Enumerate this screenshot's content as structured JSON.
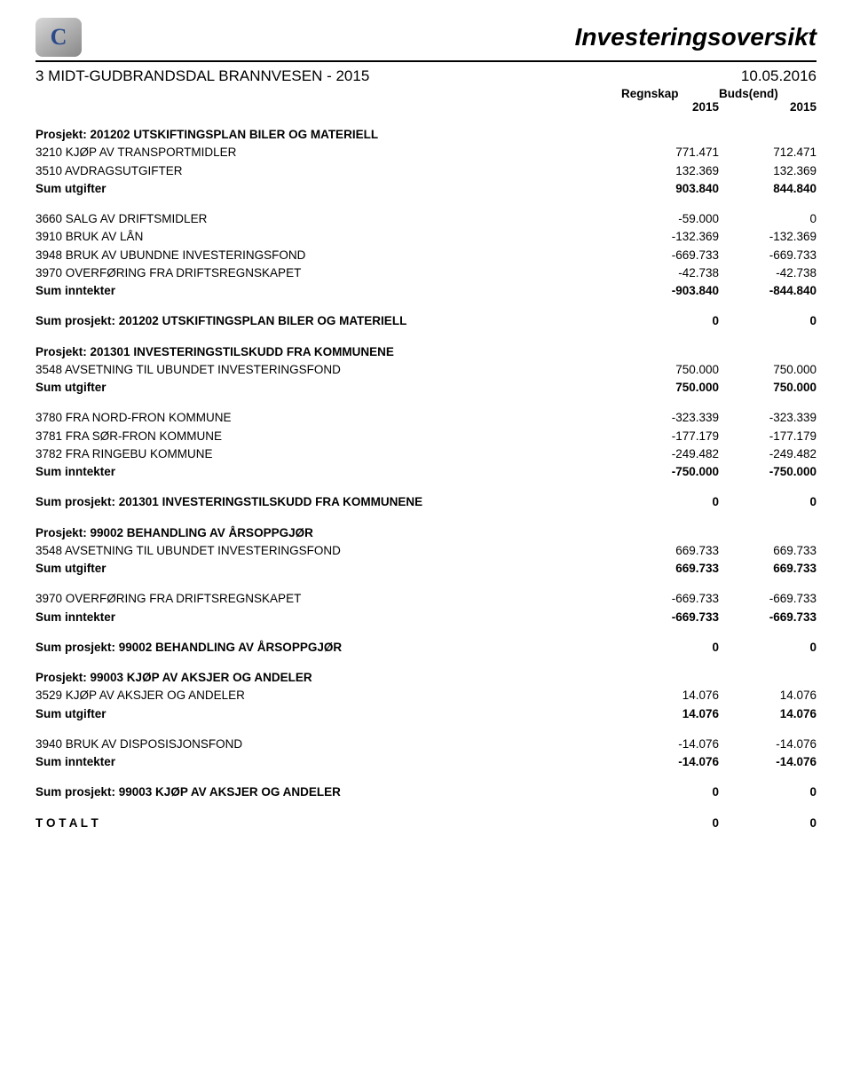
{
  "header": {
    "title": "Investeringsoversikt"
  },
  "subheader": {
    "left": "3 MIDT-GUDBRANDSDAL BRANNVESEN - 2015",
    "right": "10.05.2016",
    "col1top": "Regnskap",
    "col1bot": "2015",
    "col2top": "Buds(end)",
    "col2bot": "2015"
  },
  "body": [
    {
      "type": "prj",
      "label": "Prosjekt: 201202 UTSKIFTINGSPLAN BILER OG MATERIELL"
    },
    {
      "type": "line",
      "label": "3210 KJØP AV TRANSPORTMIDLER",
      "v1": "771.471",
      "v2": "712.471"
    },
    {
      "type": "line",
      "label": "3510 AVDRAGSUTGIFTER",
      "v1": "132.369",
      "v2": "132.369"
    },
    {
      "type": "sum",
      "label": "Sum utgifter",
      "v1": "903.840",
      "v2": "844.840"
    },
    {
      "type": "gap"
    },
    {
      "type": "line",
      "label": "3660 SALG AV DRIFTSMIDLER",
      "v1": "-59.000",
      "v2": "0"
    },
    {
      "type": "line",
      "label": "3910 BRUK AV LÅN",
      "v1": "-132.369",
      "v2": "-132.369"
    },
    {
      "type": "line",
      "label": "3948 BRUK AV UBUNDNE INVESTERINGSFOND",
      "v1": "-669.733",
      "v2": "-669.733"
    },
    {
      "type": "line",
      "label": "3970 OVERFØRING FRA DRIFTSREGNSKAPET",
      "v1": "-42.738",
      "v2": "-42.738"
    },
    {
      "type": "sum",
      "label": "Sum inntekter",
      "v1": "-903.840",
      "v2": "-844.840"
    },
    {
      "type": "gap"
    },
    {
      "type": "sum",
      "label": "Sum prosjekt: 201202 UTSKIFTINGSPLAN BILER OG MATERIELL",
      "v1": "0",
      "v2": "0"
    },
    {
      "type": "prj",
      "label": "Prosjekt: 201301 INVESTERINGSTILSKUDD FRA KOMMUNENE"
    },
    {
      "type": "line",
      "label": "3548 AVSETNING TIL UBUNDET INVESTERINGSFOND",
      "v1": "750.000",
      "v2": "750.000"
    },
    {
      "type": "sum",
      "label": "Sum utgifter",
      "v1": "750.000",
      "v2": "750.000"
    },
    {
      "type": "gap"
    },
    {
      "type": "line",
      "label": "3780 FRA NORD-FRON KOMMUNE",
      "v1": "-323.339",
      "v2": "-323.339"
    },
    {
      "type": "line",
      "label": "3781 FRA SØR-FRON KOMMUNE",
      "v1": "-177.179",
      "v2": "-177.179"
    },
    {
      "type": "line",
      "label": "3782 FRA RINGEBU KOMMUNE",
      "v1": "-249.482",
      "v2": "-249.482"
    },
    {
      "type": "sum",
      "label": "Sum inntekter",
      "v1": "-750.000",
      "v2": "-750.000"
    },
    {
      "type": "gap"
    },
    {
      "type": "sum",
      "label": "Sum prosjekt: 201301 INVESTERINGSTILSKUDD FRA KOMMUNENE",
      "v1": "0",
      "v2": "0"
    },
    {
      "type": "prj",
      "label": "Prosjekt: 99002 BEHANDLING AV ÅRSOPPGJØR"
    },
    {
      "type": "line",
      "label": "3548 AVSETNING TIL UBUNDET INVESTERINGSFOND",
      "v1": "669.733",
      "v2": "669.733"
    },
    {
      "type": "sum",
      "label": "Sum utgifter",
      "v1": "669.733",
      "v2": "669.733"
    },
    {
      "type": "gap"
    },
    {
      "type": "line",
      "label": "3970 OVERFØRING FRA DRIFTSREGNSKAPET",
      "v1": "-669.733",
      "v2": "-669.733"
    },
    {
      "type": "sum",
      "label": "Sum inntekter",
      "v1": "-669.733",
      "v2": "-669.733"
    },
    {
      "type": "gap"
    },
    {
      "type": "sum",
      "label": "Sum prosjekt: 99002 BEHANDLING AV ÅRSOPPGJØR",
      "v1": "0",
      "v2": "0"
    },
    {
      "type": "prj",
      "label": "Prosjekt: 99003 KJØP AV AKSJER OG ANDELER"
    },
    {
      "type": "line",
      "label": "3529 KJØP AV AKSJER OG ANDELER",
      "v1": "14.076",
      "v2": "14.076"
    },
    {
      "type": "sum",
      "label": "Sum utgifter",
      "v1": "14.076",
      "v2": "14.076"
    },
    {
      "type": "gap"
    },
    {
      "type": "line",
      "label": "3940 BRUK AV DISPOSISJONSFOND",
      "v1": "-14.076",
      "v2": "-14.076"
    },
    {
      "type": "sum",
      "label": "Sum inntekter",
      "v1": "-14.076",
      "v2": "-14.076"
    },
    {
      "type": "gap"
    },
    {
      "type": "sum",
      "label": "Sum prosjekt: 99003 KJØP AV AKSJER OG ANDELER",
      "v1": "0",
      "v2": "0"
    },
    {
      "type": "gap"
    },
    {
      "type": "sum",
      "label": "T O T A L T",
      "v1": "0",
      "v2": "0"
    }
  ]
}
